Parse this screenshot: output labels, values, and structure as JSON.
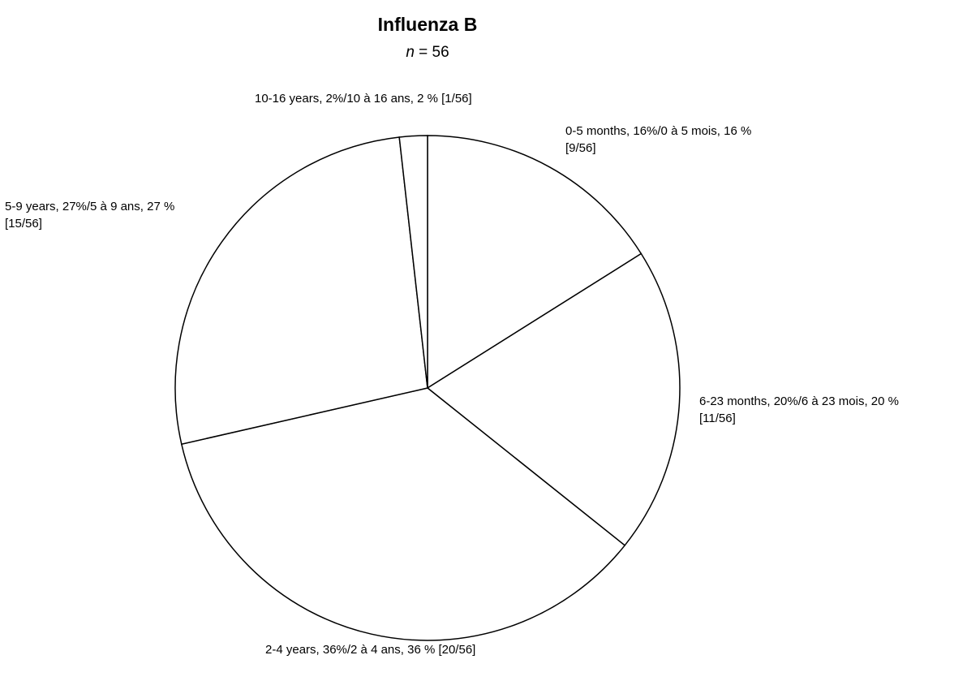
{
  "chart_data": {
    "type": "pie",
    "title": "Influenza B",
    "subtitle": {
      "variable": "n",
      "text": "= 56"
    },
    "labels": [
      [
        "0-5 months, 16%/0 à 5 mois, 16 %",
        "[9/56]"
      ],
      [
        "6-23 months, 20%/6 à 23 mois, 20 %",
        "[11/56]"
      ],
      [
        "2-4 years, 36%/2 à 4 ans, 36 % [20/56]"
      ],
      [
        "5-9 years, 27%/5 à 9 ans, 27 %",
        "[15/56]"
      ],
      [
        "10-16 years, 2%/10 à 16 ans, 2 % [1/56]"
      ]
    ],
    "values": [
      9,
      11,
      20,
      15,
      1
    ],
    "colors": [
      "#ffffff",
      "#ffffff",
      "#ffffff",
      "#ffffff",
      "#ffffff"
    ]
  }
}
